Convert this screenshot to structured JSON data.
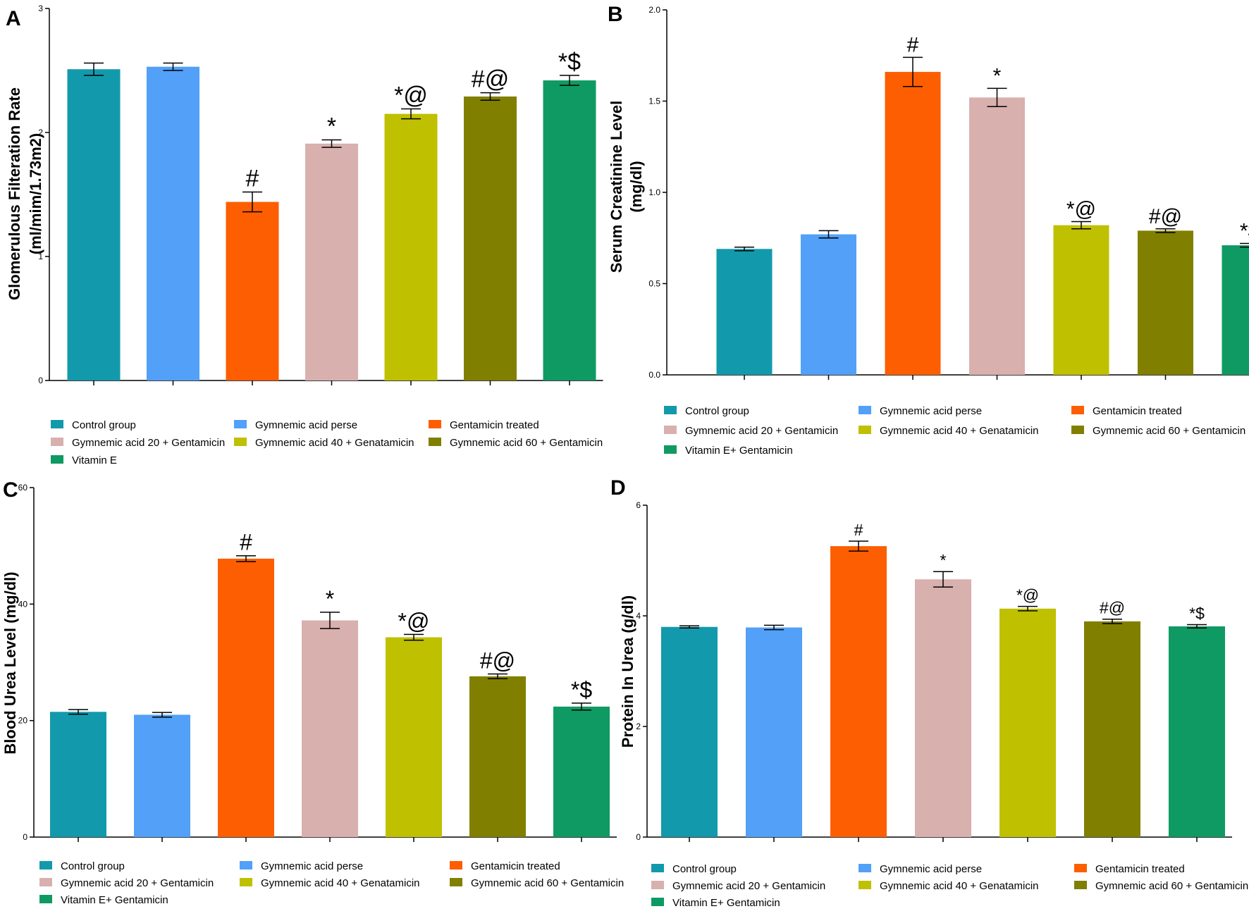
{
  "chart_data": [
    {
      "panel": "A",
      "type": "bar",
      "ylabel": [
        "Glomerulous Filteration Rate",
        "(ml/mim/1.73m2)"
      ],
      "ylim": [
        0,
        3
      ],
      "yticks": [
        "0",
        "1",
        "2",
        "3"
      ],
      "categories": [
        "Control group",
        "Gymnemic acid perse",
        "Gentamicin treated",
        "Gymnemic acid 20 + Gentamicin",
        "Gymnemic acid 40 + Genatamicin",
        "Gymnemic acid 60 + Gentamicin",
        "Vitamin E"
      ],
      "values": [
        2.51,
        2.53,
        1.44,
        1.91,
        2.15,
        2.29,
        2.42
      ],
      "errors": [
        0.05,
        0.03,
        0.08,
        0.03,
        0.04,
        0.03,
        0.04
      ],
      "annotations": [
        "",
        "",
        "#",
        "*",
        "*@",
        "#@",
        "*$"
      ],
      "legend": [
        "Control group",
        "Gymnemic acid perse",
        "Gentamicin treated",
        "Gymnemic acid 20 + Gentamicin",
        "Gymnemic acid 40 + Genatamicin",
        "Gymnemic acid 60 + Gentamicin",
        "Vitamin E"
      ]
    },
    {
      "panel": "B",
      "type": "bar",
      "ylabel": [
        "Serum Creatinine Level",
        "(mg/dl)"
      ],
      "ylim": [
        0,
        2.0
      ],
      "yticks": [
        "0.0",
        "0.5",
        "1.0",
        "1.5",
        "2.0"
      ],
      "categories": [
        "Control group",
        "Gymnemic acid perse",
        "Gentamicin treated",
        "Gymnemic acid 20 + Gentamicin",
        "Gymnemic acid 40 + Genatamicin",
        "Gymnemic acid 60 + Gentamicin",
        "Vitamin E+ Gentamicin"
      ],
      "values": [
        0.69,
        0.77,
        1.66,
        1.52,
        0.82,
        0.79,
        0.71
      ],
      "errors": [
        0.01,
        0.02,
        0.08,
        0.05,
        0.02,
        0.01,
        0.01
      ],
      "annotations": [
        "",
        "",
        "#",
        "*",
        "*@",
        "#@",
        "*$"
      ],
      "legend": [
        "Control group",
        "Gymnemic acid perse",
        "Gentamicin treated",
        "Gymnemic acid 20 + Gentamicin",
        "Gymnemic acid 40 + Genatamicin",
        "Gymnemic acid 60 + Gentamicin",
        "Vitamin E+ Gentamicin"
      ]
    },
    {
      "panel": "C",
      "type": "bar",
      "ylabel": [
        "Blood Urea Level (mg/dl)"
      ],
      "ylim": [
        0,
        60
      ],
      "yticks": [
        "0",
        "20",
        "40",
        "60"
      ],
      "categories": [
        "Control group",
        "Gymnemic acid perse",
        "Gentamicin treated",
        "Gymnemic acid 20 + Gentamicin",
        "Gymnemic acid 40 + Genatamicin",
        "Gymnemic acid 60 + Gentamicin",
        "Vitamin E+ Gentamicin"
      ],
      "values": [
        21.5,
        21.0,
        47.8,
        37.2,
        34.3,
        27.6,
        22.4
      ],
      "errors": [
        0.4,
        0.4,
        0.5,
        1.4,
        0.5,
        0.4,
        0.6
      ],
      "annotations": [
        "",
        "",
        "#",
        "*",
        "*@",
        "#@",
        "*$"
      ],
      "legend": [
        "Control group",
        "Gymnemic acid perse",
        "Gentamicin treated",
        "Gymnemic acid 20 + Gentamicin",
        "Gymnemic acid 40 + Genatamicin",
        "Gymnemic acid 60 + Gentamicin",
        "Vitamin E+ Gentamicin"
      ]
    },
    {
      "panel": "D",
      "type": "bar",
      "ylabel": [
        "Protein In Urea (g/dl)"
      ],
      "ylim": [
        0,
        6
      ],
      "yticks": [
        "0",
        "2",
        "4",
        "6"
      ],
      "categories": [
        "Control group",
        "Gymnemic acid perse",
        "Gentamicin treated",
        "Gymnemic acid 20 + Gentamicin",
        "Gymnemic acid 40 + Genatamicin",
        "Gymnemic acid 60 + Gentamicin",
        "Vitamin E+ Gentamicin"
      ],
      "values": [
        3.8,
        3.79,
        5.26,
        4.66,
        4.13,
        3.9,
        3.81
      ],
      "errors": [
        0.02,
        0.04,
        0.09,
        0.14,
        0.04,
        0.04,
        0.03
      ],
      "annotations": [
        "",
        "",
        "#",
        "*",
        "*@",
        "#@",
        "*$"
      ],
      "legend": [
        "Control group",
        "Gymnemic acid perse",
        "Gentamicin treated",
        "Gymnemic acid 20 + Gentamicin",
        "Gymnemic acid 40 + Genatamicin",
        "Gymnemic acid 60 + Gentamicin",
        "Vitamin E+ Gentamicin"
      ]
    }
  ],
  "colors": [
    "#129aac",
    "#52a0f8",
    "#fd5e02",
    "#d8b0ae",
    "#bfc000",
    "#807f00",
    "#0f9a63"
  ]
}
